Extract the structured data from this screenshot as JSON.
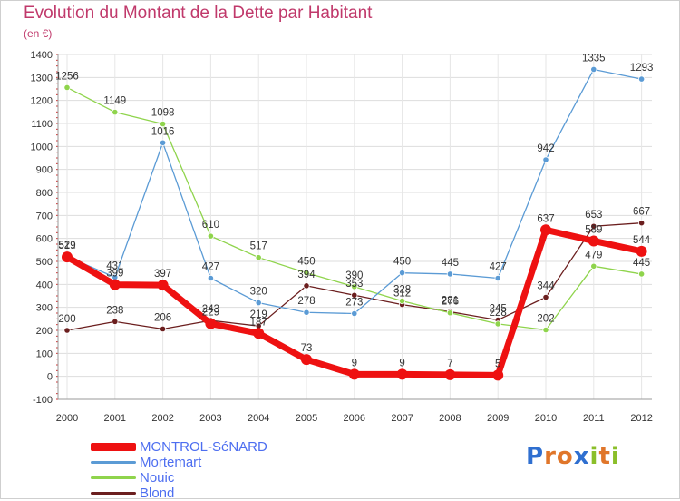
{
  "header": {
    "title": "Evolution du Montant de la Dette par Habitant",
    "unit": "(en €)"
  },
  "brand": {
    "letters": [
      {
        "ch": "P",
        "color": "#2f6fd0"
      },
      {
        "ch": "r",
        "color": "#e0762a"
      },
      {
        "ch": "o",
        "color": "#e0762a"
      },
      {
        "ch": "x",
        "color": "#2f6fd0"
      },
      {
        "ch": "i",
        "color": "#8bbf2a"
      },
      {
        "ch": "t",
        "color": "#e0762a"
      },
      {
        "ch": "i",
        "color": "#8bbf2a"
      }
    ]
  },
  "chart_data": {
    "type": "line",
    "title": "Evolution du Montant de la Dette par Habitant",
    "ylabel": "(en €)",
    "xlabel": "",
    "x": [
      "2000",
      "2001",
      "2002",
      "2003",
      "2004",
      "2005",
      "2006",
      "2007",
      "2008",
      "2009",
      "2010",
      "2011",
      "2012"
    ],
    "ylim": [
      -100,
      1400
    ],
    "yticks": [
      -100,
      0,
      100,
      200,
      300,
      400,
      500,
      600,
      700,
      800,
      900,
      1000,
      1100,
      1200,
      1300,
      1400
    ],
    "grid": true,
    "legend_position": "bottom-left",
    "series": [
      {
        "name": "MONTROL-SéNARD",
        "color": "#ee1111",
        "values": [
          519,
          399,
          397,
          229,
          187,
          73,
          9,
          9,
          7,
          5,
          637,
          589,
          544
        ]
      },
      {
        "name": "Mortemart",
        "color": "#5b9bd5",
        "values": [
          521,
          431,
          1016,
          427,
          320,
          278,
          273,
          450,
          445,
          427,
          942,
          1335,
          1293
        ]
      },
      {
        "name": "Nouic",
        "color": "#8fd44c",
        "values": [
          1256,
          1149,
          1098,
          610,
          517,
          450,
          390,
          328,
          276,
          228,
          202,
          479,
          445
        ]
      },
      {
        "name": "Blond",
        "color": "#6b1e1e",
        "values": [
          200,
          238,
          206,
          243,
          219,
          394,
          353,
          312,
          281,
          245,
          344,
          653,
          667
        ]
      }
    ]
  }
}
